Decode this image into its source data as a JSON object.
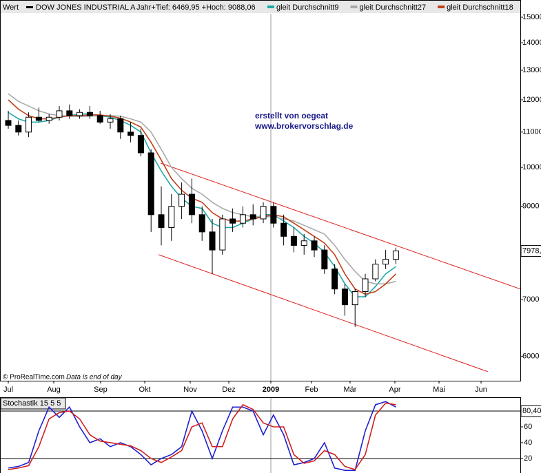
{
  "chart_data": [
    {
      "type": "candlestick",
      "label": "Wert",
      "title": "DOW JONES INDUSTRIAL A",
      "subtitle": "Jahr+Tief: 6469,95 +Hoch: 9088,06",
      "annotations": [
        "erstellt von oegeat",
        "www.brokervorschlag.de"
      ],
      "footer": "© ProRealTime.com",
      "footer_note": "Data is end of day",
      "last_label": "7978,",
      "log_scale": true,
      "up_color": "#ffffff",
      "down_color": "#000000",
      "open": [
        11350,
        11200,
        11000,
        11450,
        11350,
        11450,
        11650,
        11500,
        11600,
        11500,
        11300,
        11400,
        11000,
        10900,
        10400,
        8800,
        8500,
        9000,
        9300,
        8800,
        8400,
        8000,
        8700,
        8600,
        8800,
        8700,
        9000,
        8600,
        8300,
        8100,
        8200,
        8000,
        7600,
        7200,
        6900,
        7150,
        7400,
        7700,
        7800
      ],
      "high": [
        11650,
        11350,
        11600,
        11750,
        11550,
        11800,
        11850,
        11700,
        11800,
        11650,
        11550,
        11500,
        11300,
        11100,
        10500,
        9500,
        9300,
        9600,
        9700,
        9000,
        8700,
        8800,
        8950,
        9000,
        9050,
        9100,
        9100,
        8800,
        8500,
        8350,
        8300,
        8100,
        7700,
        7300,
        7200,
        7500,
        7800,
        8000,
        8050
      ],
      "low": [
        11100,
        10900,
        10850,
        11300,
        11250,
        11350,
        11400,
        11400,
        11400,
        11250,
        11100,
        10800,
        10700,
        10300,
        8400,
        8100,
        8200,
        8700,
        8600,
        8200,
        7500,
        7900,
        8400,
        8500,
        8550,
        8600,
        8500,
        8100,
        7950,
        7900,
        7850,
        7500,
        7100,
        6700,
        6500,
        7050,
        7350,
        7600,
        7700
      ],
      "close": [
        11200,
        11000,
        11450,
        11350,
        11450,
        11650,
        11500,
        11600,
        11500,
        11300,
        11400,
        11000,
        10900,
        10400,
        8800,
        8500,
        9000,
        9300,
        8800,
        8400,
        8000,
        8700,
        8600,
        8800,
        8700,
        9000,
        8600,
        8300,
        8100,
        8200,
        8000,
        7600,
        7200,
        6900,
        7150,
        7400,
        7700,
        7800,
        7980
      ],
      "series": [
        {
          "name": "gleit Durchschnitt9",
          "color": "#1fa8a8",
          "values": [
            11600,
            11400,
            11300,
            11300,
            11350,
            11450,
            11500,
            11550,
            11550,
            11500,
            11450,
            11350,
            11200,
            11000,
            10400,
            9900,
            9500,
            9200,
            9000,
            8950,
            8600,
            8500,
            8500,
            8600,
            8700,
            8800,
            8800,
            8650,
            8500,
            8300,
            8150,
            7950,
            7650,
            7300,
            7050,
            7050,
            7250,
            7500,
            7650
          ]
        },
        {
          "name": "gleit Durchschnitt27",
          "color": "#aaaaaa",
          "values": [
            12200,
            11950,
            11800,
            11650,
            11550,
            11500,
            11480,
            11470,
            11480,
            11500,
            11500,
            11480,
            11400,
            11300,
            11000,
            10500,
            10000,
            9700,
            9450,
            9300,
            9100,
            8950,
            8850,
            8800,
            8750,
            8750,
            8750,
            8700,
            8650,
            8550,
            8450,
            8350,
            8100,
            7800,
            7550,
            7350,
            7300,
            7300,
            7350
          ]
        },
        {
          "name": "gleit Durchschnitt18",
          "color": "#c0401a",
          "values": [
            12000,
            11700,
            11500,
            11400,
            11400,
            11450,
            11500,
            11500,
            11520,
            11520,
            11480,
            11420,
            11300,
            11150,
            10700,
            10200,
            9700,
            9400,
            9200,
            9100,
            8850,
            8700,
            8650,
            8650,
            8700,
            8750,
            8800,
            8750,
            8600,
            8450,
            8300,
            8150,
            7900,
            7500,
            7200,
            7100,
            7150,
            7300,
            7500
          ]
        }
      ],
      "trendlines": [
        {
          "color": "#e02020",
          "x": [
            14.93,
            50.2
          ],
          "values": [
            10115,
            7199
          ]
        },
        {
          "color": "#e02020",
          "x": [
            14.73,
            47.0
          ],
          "values": [
            7900,
            5760
          ]
        }
      ],
      "xlim": [
        -0.81,
        50.2
      ],
      "xticks": [
        {
          "value": 0,
          "label": "Jul"
        },
        {
          "value": 4.46,
          "label": "Aug"
        },
        {
          "value": 9.05,
          "label": "Sep"
        },
        {
          "value": 13.38,
          "label": "Okt"
        },
        {
          "value": 17.84,
          "label": "Nov"
        },
        {
          "value": 21.62,
          "label": "Dez"
        },
        {
          "value": 25.74,
          "label": "2009"
        },
        {
          "value": 29.73,
          "label": "Feb"
        },
        {
          "value": 33.51,
          "label": "Mär"
        },
        {
          "value": 37.9,
          "label": "Apr"
        },
        {
          "value": 42.23,
          "label": "Mai"
        },
        {
          "value": 46.35,
          "label": "Jun"
        }
      ],
      "ylim": [
        5620,
        15140
      ],
      "yticks": [
        6000,
        7000,
        9000,
        10000,
        11000,
        12000,
        13000,
        14000,
        15000
      ]
    },
    {
      "type": "line",
      "title": "Stochastik 15 5 5",
      "last_label": "80,40",
      "series": [
        {
          "color": "#2020d0",
          "values": [
            8,
            10,
            15,
            55,
            85,
            72,
            85,
            60,
            40,
            45,
            35,
            40,
            35,
            25,
            12,
            20,
            25,
            35,
            80,
            55,
            20,
            55,
            85,
            85,
            80,
            50,
            75,
            50,
            12,
            15,
            20,
            40,
            8,
            5,
            5,
            55,
            88,
            92,
            85
          ]
        },
        {
          "color": "#d02020",
          "values": [
            6,
            8,
            11,
            35,
            70,
            78,
            80,
            70,
            50,
            42,
            40,
            38,
            36,
            30,
            20,
            15,
            22,
            30,
            60,
            65,
            35,
            35,
            70,
            88,
            82,
            65,
            60,
            60,
            25,
            14,
            17,
            30,
            25,
            10,
            6,
            25,
            75,
            90,
            88
          ]
        }
      ],
      "hlines": [
        80,
        20
      ],
      "xlim": [
        -0.81,
        50.2
      ],
      "ylim": [
        1.7,
        97.4
      ],
      "yticks": [
        20,
        40,
        60
      ]
    }
  ]
}
